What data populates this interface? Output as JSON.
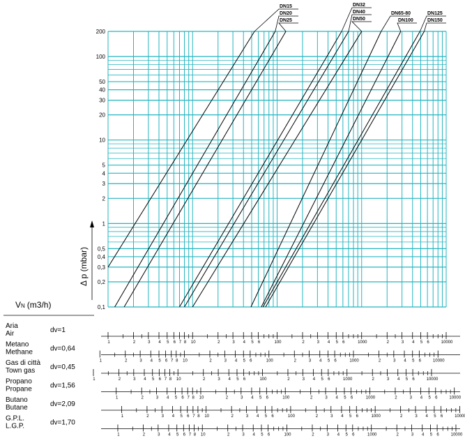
{
  "chart_data": {
    "type": "line",
    "x_label": {
      "main": "V",
      "sub": "N",
      "unit": "(m3/h)"
    },
    "y_label": "Δ p (mbar)",
    "log_x": true,
    "log_y": true,
    "grid": true,
    "grid_color": "#22b5c0",
    "line_color": "#000000",
    "xlim": [
      1,
      10000
    ],
    "ylim": [
      0.1,
      200
    ],
    "xgrid": [
      1,
      2,
      3,
      4,
      5,
      6,
      7,
      8,
      9,
      10,
      20,
      30,
      40,
      50,
      60,
      70,
      80,
      90,
      100,
      200,
      300,
      400,
      500,
      600,
      700,
      800,
      900,
      1000,
      2000,
      3000,
      4000,
      5000,
      6000,
      7000,
      8000,
      9000,
      10000
    ],
    "yticks": [
      {
        "value": 0.1,
        "label": "0,1"
      },
      {
        "value": 0.2,
        "label": "0,2"
      },
      {
        "value": 0.3,
        "label": "0,3"
      },
      {
        "value": 0.4,
        "label": "0,4"
      },
      {
        "value": 0.5,
        "label": "0,5"
      },
      1,
      2,
      3,
      4,
      5,
      10,
      20,
      30,
      40,
      50,
      100,
      200
    ],
    "yminor": [
      0.6,
      0.7,
      0.8,
      0.9,
      6,
      7,
      8,
      9,
      60,
      70,
      80,
      90
    ],
    "series": [
      {
        "name": "DN15",
        "x": [
          1,
          54
        ],
        "values": [
          0.3,
          200
        ]
      },
      {
        "name": "DN20",
        "x": [
          1.2,
          95
        ],
        "values": [
          0.1,
          200
        ]
      },
      {
        "name": "DN25",
        "x": [
          1.55,
          127
        ],
        "values": [
          0.1,
          200
        ]
      },
      {
        "name": "DN32",
        "x": [
          7,
          580
        ],
        "values": [
          0.1,
          200
        ]
      },
      {
        "name": "DN40",
        "x": [
          8,
          700
        ],
        "values": [
          0.1,
          200
        ]
      },
      {
        "name": "DN50",
        "x": [
          10,
          1000
        ],
        "values": [
          0.1,
          200
        ]
      },
      {
        "name": "DN65-80",
        "x": [
          49,
          1700
        ],
        "values": [
          0.1,
          200
        ]
      },
      {
        "name": "DN100",
        "x": [
          65,
          2900
        ],
        "values": [
          0.1,
          200
        ]
      },
      {
        "name": "DN125",
        "x": [
          68,
          4900
        ],
        "values": [
          0.1,
          200
        ]
      },
      {
        "name": "DN150",
        "x": [
          73,
          5500
        ],
        "values": [
          0.1,
          200
        ]
      }
    ],
    "gases": [
      {
        "name": "Aria",
        "name_en": "Air",
        "dv": {
          "value": 1,
          "label": "dv=1"
        }
      },
      {
        "name": "Metano",
        "name_en": "Methane",
        "dv": {
          "value": 0.64,
          "label": "dv=0,64"
        }
      },
      {
        "name": "Gas di città",
        "name_en": "Town gas",
        "dv": {
          "value": 0.45,
          "label": "dv=0,45"
        }
      },
      {
        "name": "Propano",
        "name_en": "Propane",
        "dv": {
          "value": 1.56,
          "label": "dv=1,56"
        }
      },
      {
        "name": "Butano",
        "name_en": "Butane",
        "dv": {
          "value": 2.09,
          "label": "dv=2,09"
        }
      },
      {
        "name": "G.P.L.",
        "name_en": "L.G.P.",
        "dv": {
          "value": 1.7,
          "label": "dv=1,70"
        }
      }
    ],
    "scale_ticks": [
      1,
      2,
      3,
      4,
      5,
      6,
      7,
      8,
      10,
      {
        "value": 20,
        "label": "2"
      },
      {
        "value": 30,
        "label": "3"
      },
      {
        "value": 40,
        "label": "4"
      },
      {
        "value": 50,
        "label": "5"
      },
      {
        "value": 60,
        "label": "6"
      },
      100,
      {
        "value": 200,
        "label": "2"
      },
      {
        "value": 300,
        "label": "3"
      },
      {
        "value": 400,
        "label": "4"
      },
      {
        "value": 500,
        "label": "5"
      },
      {
        "value": 600,
        "label": "6"
      },
      1000,
      {
        "value": 2000,
        "label": "2"
      },
      {
        "value": 3000,
        "label": "3"
      },
      {
        "value": 4000,
        "label": "4"
      },
      {
        "value": 5000,
        "label": "5"
      },
      {
        "value": 6000,
        "label": "6"
      },
      10000
    ],
    "scale_minor": [
      1.5,
      2.5,
      9,
      15,
      25,
      70,
      80,
      90,
      150,
      250,
      700,
      800,
      900,
      1500,
      2500,
      7000,
      8000,
      9000
    ]
  }
}
